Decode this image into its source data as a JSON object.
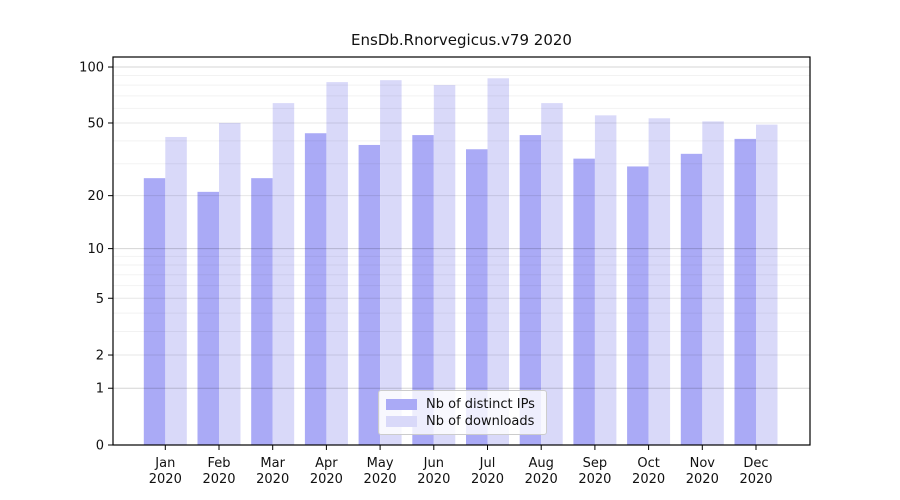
{
  "chart_data": {
    "type": "bar",
    "title": "EnsDb.Rnorvegicus.v79 2020",
    "x_year": "2020",
    "categories": [
      "Jan",
      "Feb",
      "Mar",
      "Apr",
      "May",
      "Jun",
      "Jul",
      "Aug",
      "Sep",
      "Oct",
      "Nov",
      "Dec"
    ],
    "series": [
      {
        "name": "Nb of distinct IPs",
        "color": "#aaaaf6",
        "values": [
          25,
          21,
          25,
          44,
          38,
          43,
          36,
          43,
          32,
          29,
          34,
          41
        ]
      },
      {
        "name": "Nb of downloads",
        "color": "#d9d9f9",
        "values": [
          42,
          50,
          64,
          83,
          85,
          80,
          87,
          64,
          55,
          53,
          51,
          49
        ]
      }
    ],
    "yscale": "log1p",
    "ylim": [
      0,
      113
    ],
    "yticks": [
      0,
      1,
      2,
      5,
      10,
      20,
      50,
      100
    ],
    "yticks_minor": [
      3,
      4,
      6,
      7,
      8,
      9,
      30,
      40,
      60,
      70,
      80,
      90
    ],
    "grid": true,
    "legend_position": "bottom-center",
    "axis_color": "#000000",
    "text_color": "#111111"
  }
}
